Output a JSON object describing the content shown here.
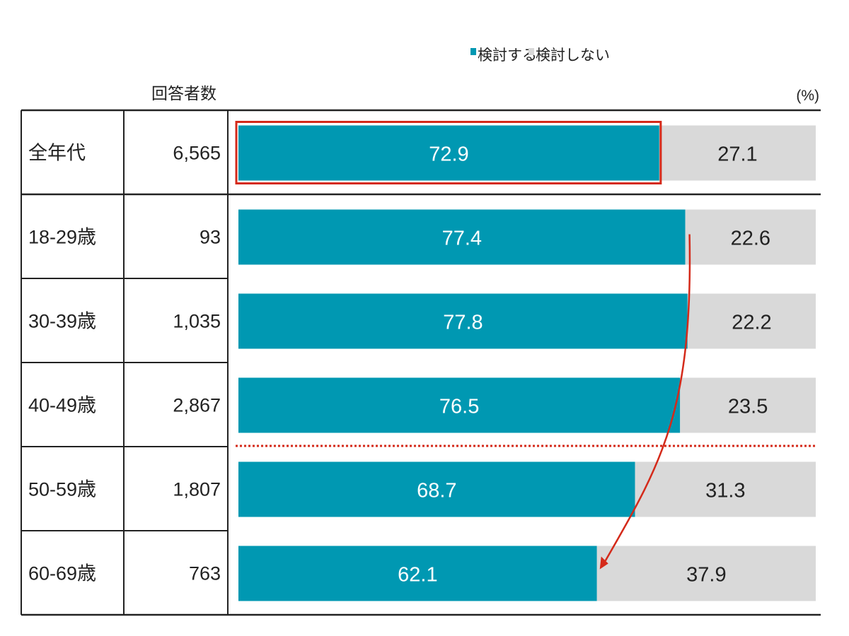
{
  "legend": {
    "items": [
      {
        "label": "検討する",
        "color": "#0098b2"
      },
      {
        "label": "検討しない",
        "color": "#d9d9d9"
      }
    ]
  },
  "table": {
    "count_header": "回答者数",
    "unit": "(%)"
  },
  "chart_data": {
    "type": "bar",
    "orientation": "horizontal",
    "stacked": true,
    "xlim": [
      0,
      100
    ],
    "unit": "(%)",
    "legend_position": "top",
    "categories": [
      "全年代",
      "18-29歳",
      "30-39歳",
      "40-49歳",
      "50-59歳",
      "60-69歳"
    ],
    "respondents": [
      "6,565",
      "93",
      "1,035",
      "2,867",
      "1,807",
      "763"
    ],
    "series": [
      {
        "name": "検討する",
        "color": "#0098b2",
        "values": [
          72.9,
          77.4,
          77.8,
          76.5,
          68.7,
          62.1
        ],
        "labels": [
          "72.9",
          "77.4",
          "77.8",
          "76.5",
          "68.7",
          "62.1"
        ]
      },
      {
        "name": "検討しない",
        "color": "#d9d9d9",
        "values": [
          27.1,
          22.6,
          22.2,
          23.5,
          31.3,
          37.9
        ],
        "labels": [
          "27.1",
          "22.6",
          "22.2",
          "23.5",
          "31.3",
          "37.9"
        ]
      }
    ],
    "annotations": {
      "highlight_category": "全年代",
      "divider_after_category": "40-49歳",
      "arrow_from": "18-29歳",
      "arrow_to": "60-69歳",
      "accent_color": "#d42a1a"
    }
  }
}
